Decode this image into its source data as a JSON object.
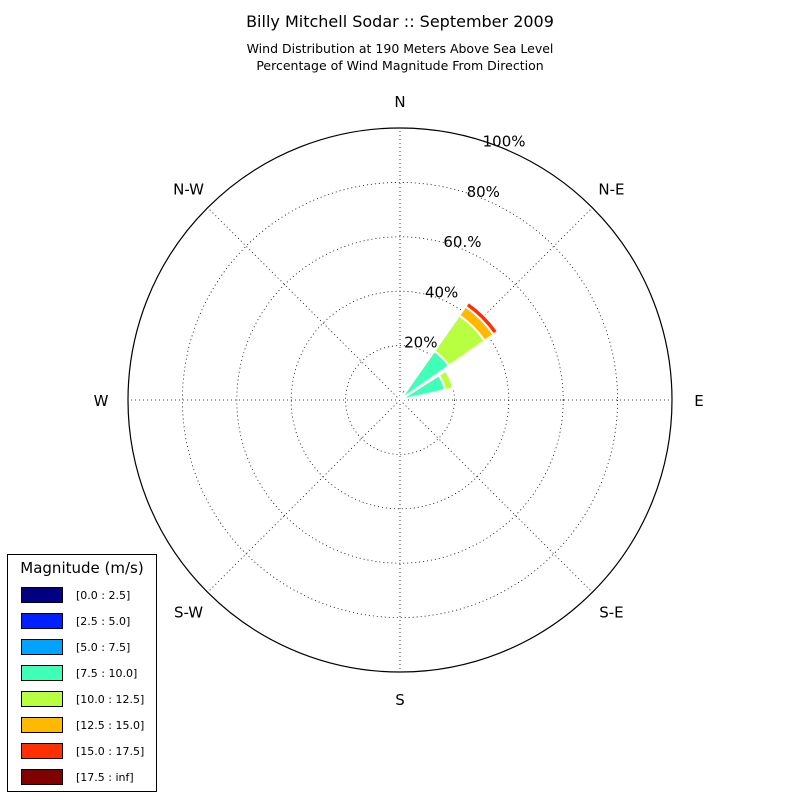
{
  "title": "Billy Mitchell Sodar :: September 2009",
  "subtitle_1": "Wind Distribution at 190 Meters Above Sea Level",
  "subtitle_2": "Percentage of Wind Magnitude From Direction",
  "chart_data": {
    "type": "windrose",
    "directions": [
      "N",
      "N-E",
      "E",
      "S-E",
      "S",
      "S-W",
      "W",
      "N-W"
    ],
    "radial_ticks": [
      "20%",
      "40%",
      "60.%",
      "80%",
      "100%"
    ],
    "radial_max": 100,
    "legend_title": "Magnitude (m/s)",
    "bins": [
      {
        "label": "[0.0 : 2.5]",
        "color": "#000080"
      },
      {
        "label": "[2.5 : 5.0]",
        "color": "#0020ff"
      },
      {
        "label": "[5.0 : 7.5]",
        "color": "#00a4ff"
      },
      {
        "label": "[7.5 : 10.0]",
        "color": "#40ffb7"
      },
      {
        "label": "[10.0 : 12.5]",
        "color": "#b7ff40"
      },
      {
        "label": "[12.5 : 15.0]",
        "color": "#ffb900"
      },
      {
        "label": "[15.0 : 17.5]",
        "color": "#ff3000"
      },
      {
        "label": "[17.5 : inf]",
        "color": "#800000"
      }
    ],
    "sectors": [
      {
        "direction_deg": 22.5,
        "cumulative": [
          0.5,
          2.5,
          4,
          4.5,
          4.8,
          5,
          5,
          5
        ]
      },
      {
        "direction_deg": 45,
        "cumulative": [
          0.5,
          1.5,
          2,
          22,
          38,
          42,
          44,
          44
        ]
      },
      {
        "direction_deg": 67.5,
        "cumulative": [
          0.5,
          1,
          1.5,
          17,
          20,
          20,
          20,
          20
        ]
      }
    ]
  }
}
